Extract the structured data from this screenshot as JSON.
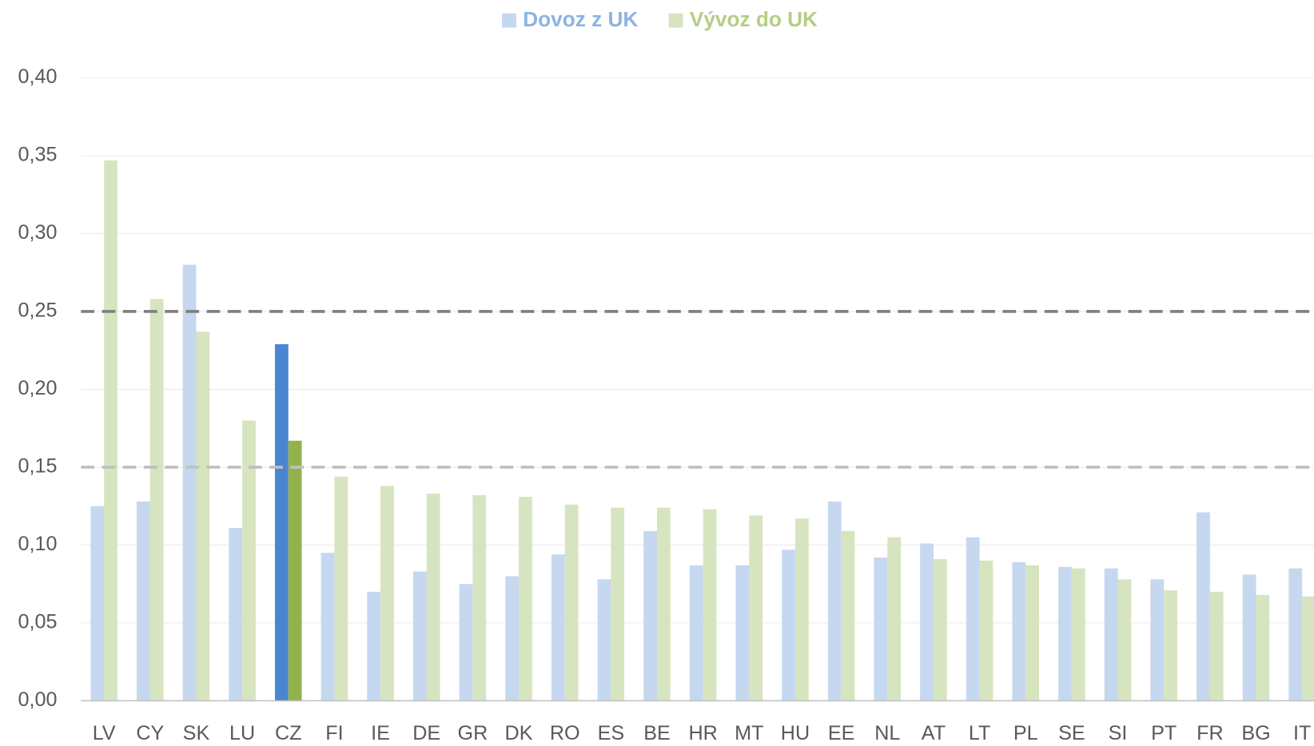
{
  "chart_data": {
    "type": "bar",
    "categories": [
      "LV",
      "CY",
      "SK",
      "LU",
      "CZ",
      "FI",
      "IE",
      "DE",
      "GR",
      "DK",
      "RO",
      "ES",
      "BE",
      "HR",
      "MT",
      "HU",
      "EE",
      "NL",
      "AT",
      "LT",
      "PL",
      "SE",
      "SI",
      "PT",
      "FR",
      "BG",
      "IT"
    ],
    "series": [
      {
        "name": "Dovoz z UK",
        "color": "#c6d7f0",
        "highlight": {
          "category": "CZ",
          "color": "#4a86d0"
        },
        "values": [
          0.125,
          0.128,
          0.28,
          0.111,
          0.229,
          0.095,
          0.07,
          0.083,
          0.075,
          0.08,
          0.094,
          0.078,
          0.109,
          0.087,
          0.087,
          0.097,
          0.128,
          0.092,
          0.101,
          0.105,
          0.089,
          0.086,
          0.085,
          0.078,
          0.121,
          0.081,
          0.085
        ]
      },
      {
        "name": "Vývoz do UK",
        "color": "#d7e4c0",
        "highlight": {
          "category": "CZ",
          "color": "#93b24c"
        },
        "values": [
          0.347,
          0.258,
          0.237,
          0.18,
          0.167,
          0.144,
          0.138,
          0.133,
          0.132,
          0.131,
          0.126,
          0.124,
          0.124,
          0.123,
          0.119,
          0.117,
          0.109,
          0.105,
          0.091,
          0.09,
          0.087,
          0.085,
          0.078,
          0.071,
          0.07,
          0.068,
          0.067
        ]
      }
    ],
    "ylim": [
      0,
      0.4
    ],
    "yticks": [
      {
        "value": 0,
        "label": "0,00"
      },
      {
        "value": 0.05,
        "label": "0,05"
      },
      {
        "value": 0.1,
        "label": "0,10"
      },
      {
        "value": 0.15,
        "label": "0,15"
      },
      {
        "value": 0.2,
        "label": "0,20"
      },
      {
        "value": 0.25,
        "label": "0,25"
      },
      {
        "value": 0.3,
        "label": "0,30"
      },
      {
        "value": 0.35,
        "label": "0,35"
      },
      {
        "value": 0.4,
        "label": "0,40"
      }
    ],
    "grid": true,
    "legend": "top",
    "reference_lines": [
      {
        "value": 0.25,
        "color": "#7f7f7f"
      },
      {
        "value": 0.15,
        "color": "#bfbfbf"
      }
    ]
  }
}
